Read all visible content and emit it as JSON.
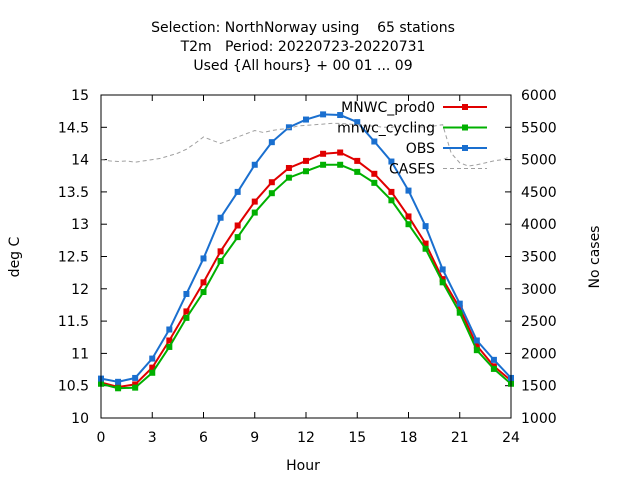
{
  "chart_data": {
    "type": "line",
    "title_lines": [
      "Selection: NorthNorway using    65 stations",
      "T2m   Period: 20220723-20220731",
      "Used {All hours} + 00 01 ... 09"
    ],
    "xlabel": "Hour",
    "ylabel": "deg C",
    "y2label": "No cases",
    "xlim": [
      0,
      24
    ],
    "ylim": [
      10,
      15
    ],
    "y2lim": [
      1000,
      6000
    ],
    "xticks": [
      "0",
      "3",
      "6",
      "9",
      "12",
      "15",
      "18",
      "21",
      "24"
    ],
    "yticks": [
      "10",
      "10.5",
      "11",
      "11.5",
      "12",
      "12.5",
      "13",
      "13.5",
      "14",
      "14.5",
      "15"
    ],
    "y2ticks": [
      "1000",
      "1500",
      "2000",
      "2500",
      "3000",
      "3500",
      "4000",
      "4500",
      "5000",
      "5500",
      "6000"
    ],
    "legend_position": "top-right",
    "x": [
      0,
      1,
      2,
      3,
      4,
      5,
      6,
      7,
      8,
      9,
      10,
      11,
      12,
      13,
      14,
      15,
      16,
      17,
      18,
      19,
      20,
      21,
      22,
      23,
      24
    ],
    "series": [
      {
        "name": "MNWC_prod0",
        "color": "#e00000",
        "axis": "left",
        "values": [
          10.55,
          10.48,
          10.52,
          10.78,
          11.2,
          11.65,
          12.1,
          12.58,
          12.98,
          13.35,
          13.65,
          13.87,
          13.98,
          14.09,
          14.11,
          13.98,
          13.78,
          13.5,
          13.12,
          12.7,
          12.15,
          11.7,
          11.12,
          10.8,
          10.58
        ]
      },
      {
        "name": "mnwc_cycling",
        "color": "#00b000",
        "axis": "left",
        "values": [
          10.53,
          10.46,
          10.47,
          10.7,
          11.1,
          11.55,
          11.95,
          12.43,
          12.8,
          13.18,
          13.48,
          13.72,
          13.82,
          13.92,
          13.92,
          13.81,
          13.64,
          13.37,
          13.0,
          12.62,
          12.1,
          11.63,
          11.05,
          10.76,
          10.53
        ]
      },
      {
        "name": "OBS",
        "color": "#1a6fcf",
        "axis": "left",
        "values": [
          10.61,
          10.56,
          10.62,
          10.92,
          11.37,
          11.92,
          12.47,
          13.1,
          13.5,
          13.92,
          14.27,
          14.5,
          14.62,
          14.7,
          14.69,
          14.58,
          14.28,
          13.97,
          13.52,
          12.97,
          12.3,
          11.77,
          11.2,
          10.9,
          10.62
        ]
      },
      {
        "name": "CASES",
        "color": "#a0a0a0",
        "axis": "right",
        "dashed": true,
        "x": [
          0,
          0.5,
          1,
          1.5,
          2,
          2.5,
          3,
          3.5,
          4,
          4.5,
          5,
          5.5,
          6,
          6.5,
          7,
          7.5,
          8,
          8.5,
          9,
          9.5,
          10,
          10.5,
          11,
          11.5,
          12,
          12.5,
          13,
          13.5,
          14,
          14.5,
          15,
          15.5,
          16,
          16.5,
          17,
          17.5,
          18,
          18.5,
          19,
          19.5,
          20,
          20.5,
          21,
          21.5,
          22,
          22.5,
          23,
          23.5,
          24
        ],
        "values": [
          5000,
          4980,
          4970,
          4980,
          4960,
          4980,
          5000,
          5020,
          5060,
          5100,
          5160,
          5250,
          5350,
          5300,
          5250,
          5300,
          5350,
          5400,
          5450,
          5420,
          5450,
          5470,
          5480,
          5520,
          5530,
          5540,
          5550,
          5560,
          5560,
          5550,
          5540,
          5520,
          5520,
          5500,
          5500,
          5520,
          5530,
          5510,
          5500,
          5520,
          5540,
          5100,
          4950,
          4900,
          4920,
          4950,
          4980,
          5000,
          5050
        ]
      }
    ]
  }
}
